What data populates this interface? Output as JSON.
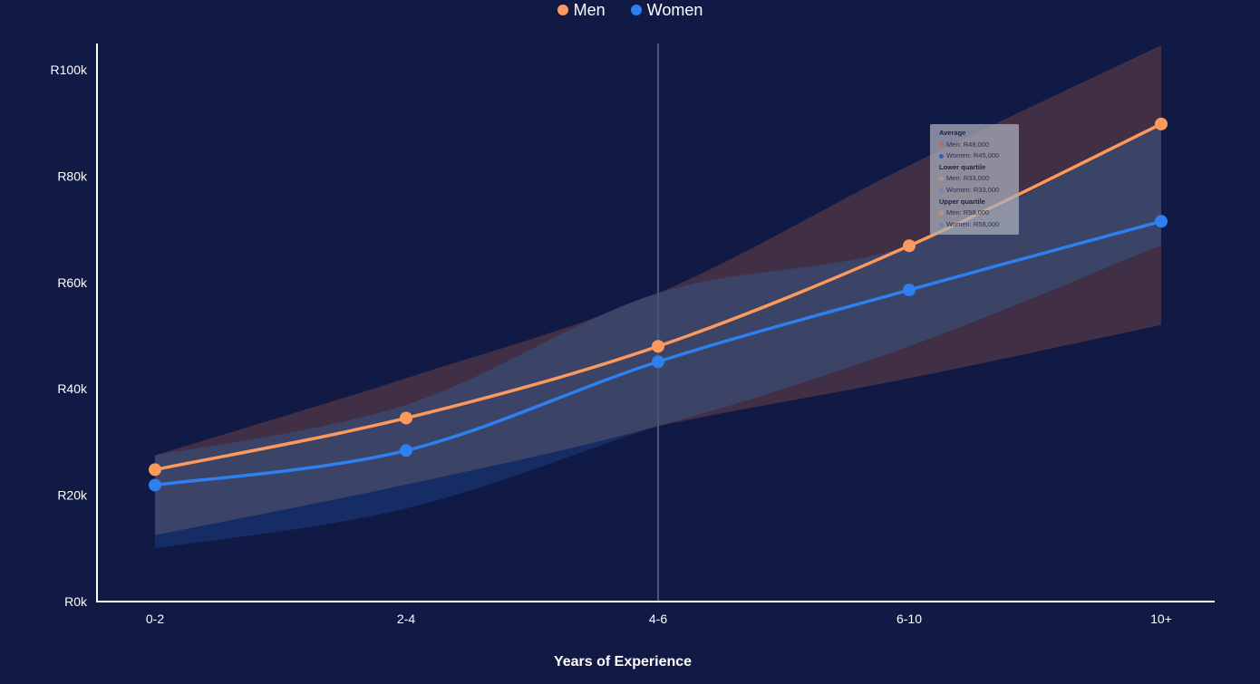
{
  "colors": {
    "background": "#101a45",
    "men": "#fb9a5c",
    "women": "#2f7ff0",
    "men_band": "#4a3446",
    "women_band": "#16306a",
    "overlap_band": "#3d4566",
    "crosshair": "#4a5477"
  },
  "legend": [
    {
      "name": "Men",
      "color": "#fb9a5c"
    },
    {
      "name": "Women",
      "color": "#2f7ff0"
    }
  ],
  "tooltip": {
    "average_label": "Average",
    "average_men": "Men: R48,000",
    "average_women": "Women: R45,000",
    "lower_label": "Lower quartile",
    "lower_men": "Men: R33,000",
    "lower_women": "Women: R33,000",
    "upper_label": "Upper quartile",
    "upper_men": "Men: R58,000",
    "upper_women": "Women: R58,000"
  },
  "chart_data": {
    "type": "line",
    "categories": [
      "0-2",
      "2-4",
      "4-6",
      "6-10",
      "10+"
    ],
    "xlabel": "Years of Experience",
    "ylabel": "",
    "ylim": [
      0,
      100000
    ],
    "yticks": [
      0,
      20000,
      40000,
      60000,
      80000,
      100000
    ],
    "ytick_labels": [
      "R0k",
      "R20k",
      "R40k",
      "R60k",
      "R80k",
      "R100k"
    ],
    "highlighted_category": "4-6",
    "series": [
      {
        "name": "Men",
        "color": "#fb9a5c",
        "values": [
          24800,
          34500,
          48000,
          66900,
          89800
        ],
        "lower_quartile": [
          12500,
          22000,
          33000,
          42000,
          52000
        ],
        "upper_quartile": [
          27500,
          42000,
          58000,
          82000,
          104600
        ]
      },
      {
        "name": "Women",
        "color": "#2f7ff0",
        "values": [
          21900,
          28400,
          45100,
          58600,
          71500
        ],
        "lower_quartile": [
          10000,
          17500,
          33000,
          48000,
          67000
        ],
        "upper_quartile": [
          27500,
          37000,
          58000,
          67000,
          90000
        ]
      }
    ],
    "legend_position": "top-center",
    "grid": false
  }
}
